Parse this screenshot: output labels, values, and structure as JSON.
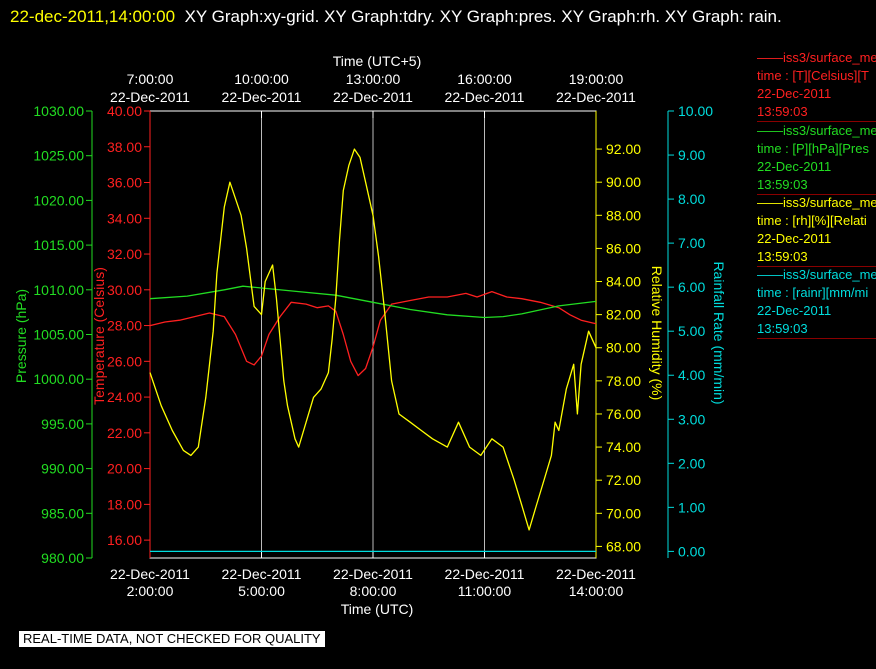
{
  "header": {
    "timestamp": "22-dec-2011,14:00:00",
    "graphs_text": "XY Graph:xy-grid.  XY Graph:tdry.  XY Graph:pres.  XY Graph:rh.  XY Graph: rain."
  },
  "disclaimer": "REAL-TIME DATA, NOT CHECKED FOR QUALITY",
  "legend": [
    {
      "name": "iss3/surface_me",
      "line": "time : [T][Celsius][T",
      "date": "22-Dec-2011",
      "time": "13:59:03",
      "color": "#ff2020"
    },
    {
      "name": "iss3/surface_me",
      "line": "time : [P][hPa][Pres",
      "date": "22-Dec-2011",
      "time": "13:59:03",
      "color": "#22dd22"
    },
    {
      "name": "iss3/surface_me",
      "line": "time : [rh][%][Relati",
      "date": "22-Dec-2011",
      "time": "13:59:03",
      "color": "#ffff00"
    },
    {
      "name": "iss3/surface_me",
      "line": "time : [rainr][mm/mi",
      "date": "22-Dec-2011",
      "time": "13:59:03",
      "color": "#00dddd"
    }
  ],
  "chart_data": {
    "type": "line",
    "x_range": [
      "22-Dec-2011 02:00:00",
      "22-Dec-2011 14:00:00"
    ],
    "grid": true,
    "top_axis": {
      "label": "Time (UTC+5)",
      "ticks": [
        {
          "time": "7:00:00",
          "date": "22-Dec-2011"
        },
        {
          "time": "10:00:00",
          "date": "22-Dec-2011"
        },
        {
          "time": "13:00:00",
          "date": "22-Dec-2011"
        },
        {
          "time": "16:00:00",
          "date": "22-Dec-2011"
        },
        {
          "time": "19:00:00",
          "date": "22-Dec-2011"
        }
      ]
    },
    "bottom_axis": {
      "label": "Time (UTC)",
      "ticks": [
        {
          "time": "2:00:00",
          "date": "22-Dec-2011"
        },
        {
          "time": "5:00:00",
          "date": "22-Dec-2011"
        },
        {
          "time": "8:00:00",
          "date": "22-Dec-2011"
        },
        {
          "time": "11:00:00",
          "date": "22-Dec-2011"
        },
        {
          "time": "14:00:00",
          "date": "22-Dec-2011"
        }
      ]
    },
    "y_axes": [
      {
        "id": "pres",
        "label": "Pressure (hPa)",
        "range": [
          980,
          1030
        ],
        "color": "#22dd22",
        "ticks": [
          "980.00",
          "985.00",
          "990.00",
          "995.00",
          "1000.00",
          "1005.00",
          "1010.00",
          "1015.00",
          "1020.00",
          "1025.00",
          "1030.00"
        ]
      },
      {
        "id": "tdry",
        "label": "Temperature (Celsius)",
        "range": [
          15,
          40
        ],
        "color": "#ff2020",
        "ticks": [
          "16.00",
          "18.00",
          "20.00",
          "22.00",
          "24.00",
          "26.00",
          "28.00",
          "30.00",
          "32.00",
          "34.00",
          "36.00",
          "38.00",
          "40.00"
        ]
      },
      {
        "id": "rh",
        "label": "Relative Humidity (%)",
        "range": [
          67.3,
          94.3
        ],
        "color": "#ffff00",
        "ticks": [
          "68.00",
          "70.00",
          "72.00",
          "74.00",
          "76.00",
          "78.00",
          "80.00",
          "82.00",
          "84.00",
          "86.00",
          "88.00",
          "90.00",
          "92.00"
        ]
      },
      {
        "id": "rain",
        "label": "Rainfall Rate (mm/min)",
        "range": [
          -0.15,
          10
        ],
        "color": "#00dddd",
        "ticks": [
          "0.00",
          "1.00",
          "2.00",
          "3.00",
          "4.00",
          "5.00",
          "6.00",
          "7.00",
          "8.00",
          "9.00",
          "10.00"
        ]
      }
    ],
    "series": [
      {
        "name": "Temperature",
        "axis": "tdry",
        "color": "#ff2020",
        "points": [
          [
            2.0,
            28.0
          ],
          [
            2.4,
            28.2
          ],
          [
            2.8,
            28.3
          ],
          [
            3.2,
            28.5
          ],
          [
            3.6,
            28.7
          ],
          [
            4.0,
            28.5
          ],
          [
            4.3,
            27.5
          ],
          [
            4.6,
            26.0
          ],
          [
            4.8,
            25.8
          ],
          [
            5.0,
            26.3
          ],
          [
            5.2,
            27.5
          ],
          [
            5.5,
            28.5
          ],
          [
            5.8,
            29.3
          ],
          [
            6.2,
            29.2
          ],
          [
            6.5,
            29.0
          ],
          [
            6.8,
            29.1
          ],
          [
            7.0,
            28.8
          ],
          [
            7.2,
            27.5
          ],
          [
            7.4,
            26.0
          ],
          [
            7.6,
            25.2
          ],
          [
            7.8,
            25.6
          ],
          [
            8.0,
            26.8
          ],
          [
            8.2,
            28.3
          ],
          [
            8.5,
            29.2
          ],
          [
            9.0,
            29.4
          ],
          [
            9.5,
            29.6
          ],
          [
            10.0,
            29.6
          ],
          [
            10.5,
            29.8
          ],
          [
            10.8,
            29.6
          ],
          [
            11.2,
            29.9
          ],
          [
            11.6,
            29.6
          ],
          [
            12.0,
            29.5
          ],
          [
            12.5,
            29.3
          ],
          [
            13.0,
            29.0
          ],
          [
            13.3,
            28.6
          ],
          [
            13.6,
            28.3
          ],
          [
            14.0,
            28.1
          ]
        ]
      },
      {
        "name": "Pressure",
        "axis": "pres",
        "color": "#22dd22",
        "points": [
          [
            2.0,
            1009.0
          ],
          [
            3.0,
            1009.3
          ],
          [
            4.0,
            1010.0
          ],
          [
            4.5,
            1010.4
          ],
          [
            5.0,
            1010.2
          ],
          [
            6.0,
            1009.8
          ],
          [
            7.0,
            1009.4
          ],
          [
            8.0,
            1008.6
          ],
          [
            9.0,
            1007.8
          ],
          [
            10.0,
            1007.2
          ],
          [
            11.0,
            1006.9
          ],
          [
            11.5,
            1007.0
          ],
          [
            12.0,
            1007.3
          ],
          [
            13.0,
            1008.2
          ],
          [
            14.0,
            1008.7
          ]
        ]
      },
      {
        "name": "Relative Humidity",
        "axis": "rh",
        "color": "#ffff00",
        "points": [
          [
            2.0,
            78.5
          ],
          [
            2.3,
            76.5
          ],
          [
            2.6,
            75.0
          ],
          [
            2.9,
            73.8
          ],
          [
            3.1,
            73.5
          ],
          [
            3.3,
            74.0
          ],
          [
            3.5,
            77.0
          ],
          [
            3.7,
            81.0
          ],
          [
            3.8,
            84.5
          ],
          [
            3.9,
            86.5
          ],
          [
            4.0,
            88.5
          ],
          [
            4.15,
            90.0
          ],
          [
            4.3,
            89.0
          ],
          [
            4.45,
            88.0
          ],
          [
            4.6,
            86.0
          ],
          [
            4.8,
            82.5
          ],
          [
            5.0,
            82.0
          ],
          [
            5.1,
            84.0
          ],
          [
            5.3,
            85.0
          ],
          [
            5.4,
            83.0
          ],
          [
            5.5,
            80.5
          ],
          [
            5.6,
            78.0
          ],
          [
            5.7,
            76.5
          ],
          [
            5.9,
            74.5
          ],
          [
            6.0,
            74.0
          ],
          [
            6.2,
            75.5
          ],
          [
            6.4,
            77.0
          ],
          [
            6.6,
            77.5
          ],
          [
            6.8,
            78.5
          ],
          [
            6.9,
            80.5
          ],
          [
            7.0,
            83.0
          ],
          [
            7.1,
            86.5
          ],
          [
            7.2,
            89.5
          ],
          [
            7.35,
            91.0
          ],
          [
            7.5,
            92.0
          ],
          [
            7.65,
            91.5
          ],
          [
            7.8,
            90.0
          ],
          [
            8.0,
            88.0
          ],
          [
            8.15,
            85.5
          ],
          [
            8.3,
            82.5
          ],
          [
            8.5,
            78.0
          ],
          [
            8.7,
            76.0
          ],
          [
            9.0,
            75.5
          ],
          [
            9.3,
            75.0
          ],
          [
            9.6,
            74.5
          ],
          [
            10.0,
            74.0
          ],
          [
            10.3,
            75.5
          ],
          [
            10.6,
            74.0
          ],
          [
            10.9,
            73.5
          ],
          [
            11.2,
            74.5
          ],
          [
            11.5,
            74.0
          ],
          [
            11.8,
            72.0
          ],
          [
            12.0,
            70.5
          ],
          [
            12.2,
            69.0
          ],
          [
            12.4,
            70.5
          ],
          [
            12.6,
            72.0
          ],
          [
            12.8,
            73.5
          ],
          [
            12.9,
            75.5
          ],
          [
            13.0,
            75.0
          ],
          [
            13.2,
            77.5
          ],
          [
            13.4,
            79.0
          ],
          [
            13.5,
            76.0
          ],
          [
            13.6,
            79.0
          ],
          [
            13.8,
            81.0
          ],
          [
            14.0,
            80.0
          ]
        ]
      },
      {
        "name": "Rainfall Rate",
        "axis": "rain",
        "color": "#00dddd",
        "points": [
          [
            2.0,
            0.0
          ],
          [
            14.0,
            0.0
          ]
        ]
      }
    ]
  }
}
